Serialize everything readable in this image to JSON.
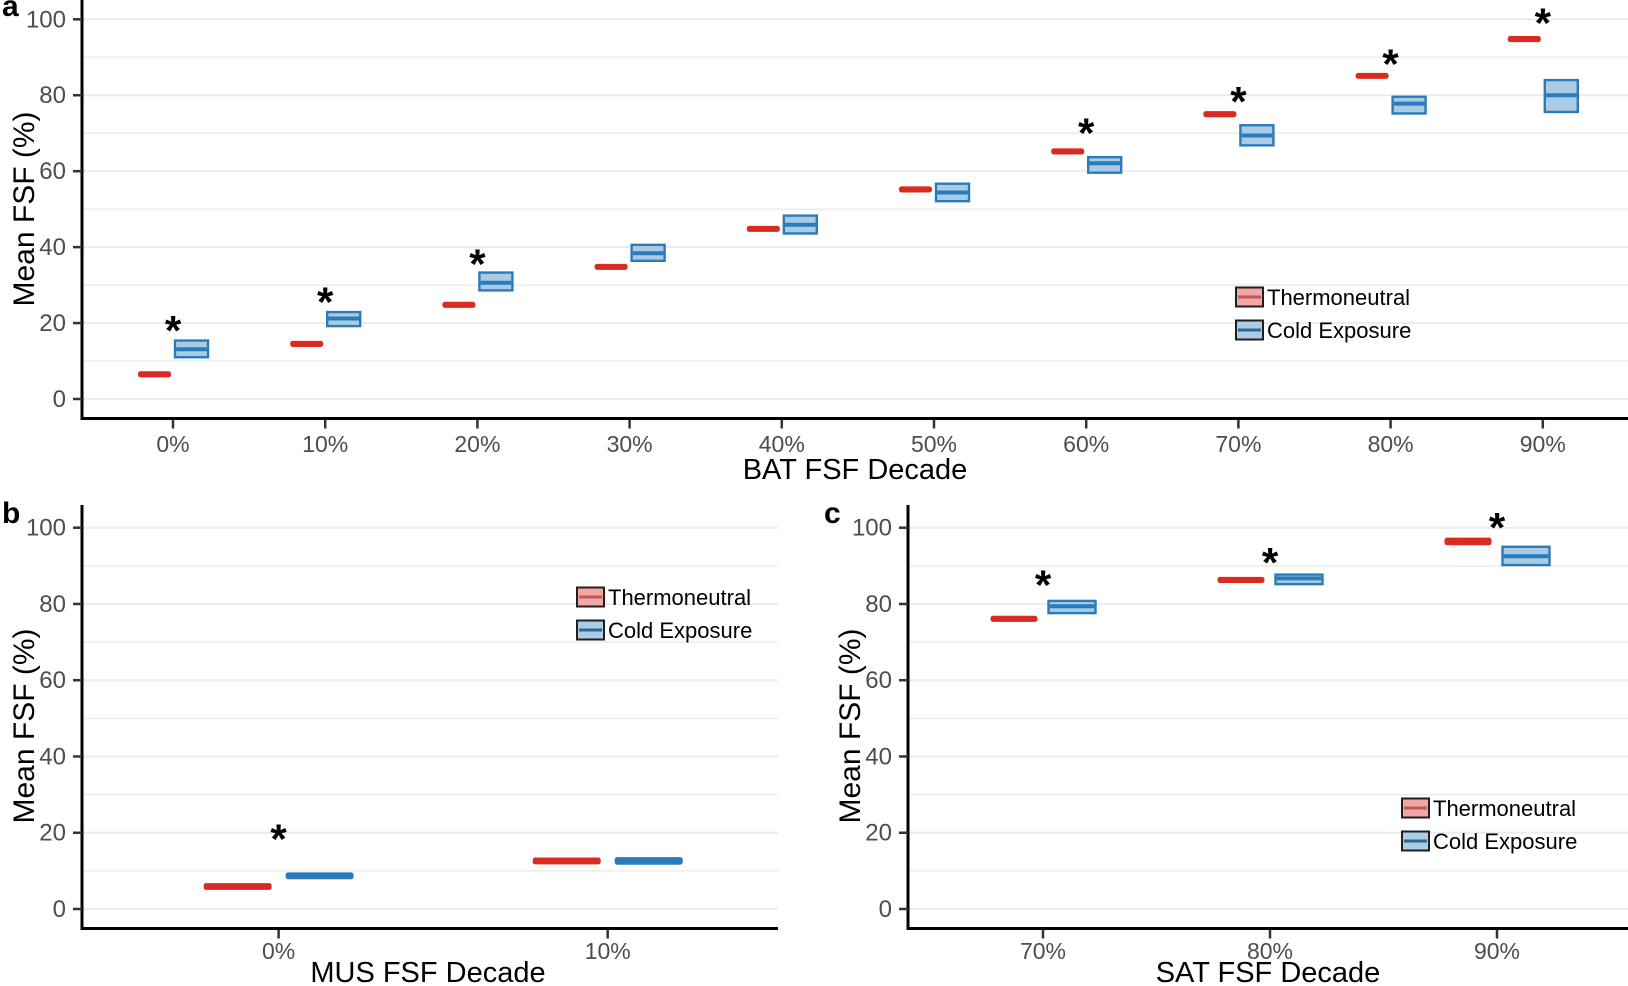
{
  "figure": {
    "background": "#ffffff",
    "colors": {
      "thermoneutral": "#d92b21",
      "cold_exposure_line": "#2b7bba",
      "cold_exposure_fill": "#a9cce4",
      "legend_tn_fill": "#f2a6a6",
      "legend_tn_median": "#bc5a5a",
      "legend_ce_fill": "#abcee6",
      "legend_ce_median": "#30658f",
      "legend_key_border": "#1f1f1f",
      "tick_label": "#4d4d4d",
      "axis": "#000000",
      "grid": "#ececec",
      "asterisk": "#000000"
    }
  },
  "chart_data": [
    {
      "id": "a",
      "panel_label": "a",
      "type": "box",
      "title": "",
      "xlabel": "BAT FSF Decade",
      "ylabel": "Mean FSF (%)",
      "ylim": [
        0,
        100
      ],
      "yticks": [
        0,
        20,
        40,
        60,
        80,
        100
      ],
      "grid": "horizontal, every 10 units",
      "categories": [
        "0%",
        "10%",
        "20%",
        "30%",
        "40%",
        "50%",
        "60%",
        "70%",
        "80%",
        "90%"
      ],
      "legend": {
        "position": "inside-right-middle",
        "items": [
          "Thermoneutral",
          "Cold Exposure"
        ]
      },
      "series": [
        {
          "name": "Thermoneutral",
          "style": "flat",
          "boxes": [
            {
              "q1": 5.7,
              "med": 6.5,
              "q3": 7.3,
              "flat": true
            },
            {
              "q1": 13.7,
              "med": 14.5,
              "q3": 15.3,
              "flat": true
            },
            {
              "q1": 24.0,
              "med": 24.8,
              "q3": 25.6,
              "flat": true
            },
            {
              "q1": 34.0,
              "med": 34.8,
              "q3": 35.6,
              "flat": true
            },
            {
              "q1": 44.0,
              "med": 44.8,
              "q3": 45.6,
              "flat": true
            },
            {
              "q1": 54.4,
              "med": 55.2,
              "q3": 56.0,
              "flat": true
            },
            {
              "q1": 64.4,
              "med": 65.2,
              "q3": 66.0,
              "flat": true
            },
            {
              "q1": 74.2,
              "med": 75.0,
              "q3": 75.8,
              "flat": true
            },
            {
              "q1": 84.3,
              "med": 85.1,
              "q3": 85.9,
              "flat": true
            },
            {
              "q1": 94.0,
              "med": 94.8,
              "q3": 95.6,
              "flat": true
            }
          ]
        },
        {
          "name": "Cold Exposure",
          "style": "box",
          "boxes": [
            {
              "q1": 11.0,
              "med": 13.1,
              "q3": 15.4
            },
            {
              "q1": 19.2,
              "med": 21.2,
              "q3": 22.9
            },
            {
              "q1": 28.6,
              "med": 30.6,
              "q3": 33.3
            },
            {
              "q1": 36.4,
              "med": 38.4,
              "q3": 40.6
            },
            {
              "q1": 43.6,
              "med": 45.9,
              "q3": 48.3
            },
            {
              "q1": 52.1,
              "med": 54.4,
              "q3": 56.7
            },
            {
              "q1": 59.6,
              "med": 62.1,
              "q3": 63.7
            },
            {
              "q1": 66.8,
              "med": 69.4,
              "q3": 72.1
            },
            {
              "q1": 75.2,
              "med": 77.8,
              "q3": 79.6
            },
            {
              "q1": 75.6,
              "med": 80.0,
              "q3": 84.0
            }
          ]
        }
      ],
      "significance": [
        {
          "category": "0%",
          "marker": "*",
          "y": 20.0
        },
        {
          "category": "10%",
          "marker": "*",
          "y": 27.5
        },
        {
          "category": "20%",
          "marker": "*",
          "y": 37.5
        },
        {
          "category": "60%",
          "marker": "*",
          "y": 72.0
        },
        {
          "category": "70%",
          "marker": "*",
          "y": 80.3
        },
        {
          "category": "80%",
          "marker": "*",
          "y": 90.2
        },
        {
          "category": "90%",
          "marker": "*",
          "y": 101.0
        }
      ]
    },
    {
      "id": "b",
      "panel_label": "b",
      "type": "box",
      "title": "",
      "xlabel": "MUS FSF Decade",
      "ylabel": "Mean FSF (%)",
      "ylim": [
        0,
        100
      ],
      "yticks": [
        0,
        20,
        40,
        60,
        80,
        100
      ],
      "grid": "horizontal, every 10 units",
      "categories": [
        "0%",
        "10%"
      ],
      "legend": {
        "position": "inside-right-upper",
        "items": [
          "Thermoneutral",
          "Cold Exposure"
        ]
      },
      "series": [
        {
          "name": "Thermoneutral",
          "style": "flat",
          "boxes": [
            {
              "q1": 5.0,
              "med": 5.9,
              "q3": 6.8,
              "flat": true
            },
            {
              "q1": 11.7,
              "med": 12.6,
              "q3": 13.5,
              "flat": true
            }
          ]
        },
        {
          "name": "Cold Exposure",
          "style": "flat",
          "boxes": [
            {
              "q1": 7.8,
              "med": 8.7,
              "q3": 9.6,
              "flat": true
            },
            {
              "q1": 11.6,
              "med": 12.6,
              "q3": 13.6,
              "flat": true
            }
          ]
        }
      ],
      "significance": [
        {
          "category": "0%",
          "marker": "*",
          "y": 20.3
        }
      ]
    },
    {
      "id": "c",
      "panel_label": "c",
      "type": "box",
      "title": "",
      "xlabel": "SAT FSF Decade",
      "ylabel": "Mean FSF (%)",
      "ylim": [
        0,
        100
      ],
      "yticks": [
        0,
        20,
        40,
        60,
        80,
        100
      ],
      "grid": "horizontal, every 10 units",
      "categories": [
        "70%",
        "80%",
        "90%"
      ],
      "legend": {
        "position": "inside-right-lower",
        "items": [
          "Thermoneutral",
          "Cold Exposure"
        ]
      },
      "series": [
        {
          "name": "Thermoneutral",
          "style": "flat",
          "boxes": [
            {
              "q1": 75.3,
              "med": 76.1,
              "q3": 76.9,
              "flat": true
            },
            {
              "q1": 85.5,
              "med": 86.3,
              "q3": 87.1,
              "flat": true
            },
            {
              "q1": 95.4,
              "med": 96.4,
              "q3": 97.4,
              "flat": true
            }
          ]
        },
        {
          "name": "Cold Exposure",
          "style": "box",
          "boxes": [
            {
              "q1": 77.6,
              "med": 79.4,
              "q3": 80.8
            },
            {
              "q1": 85.2,
              "med": 86.7,
              "q3": 87.7
            },
            {
              "q1": 90.2,
              "med": 92.5,
              "q3": 95.0
            }
          ]
        }
      ],
      "significance": [
        {
          "category": "70%",
          "marker": "*",
          "y": 87.0
        },
        {
          "category": "80%",
          "marker": "*",
          "y": 92.8
        },
        {
          "category": "90%",
          "marker": "*",
          "y": 102.0
        }
      ]
    }
  ]
}
